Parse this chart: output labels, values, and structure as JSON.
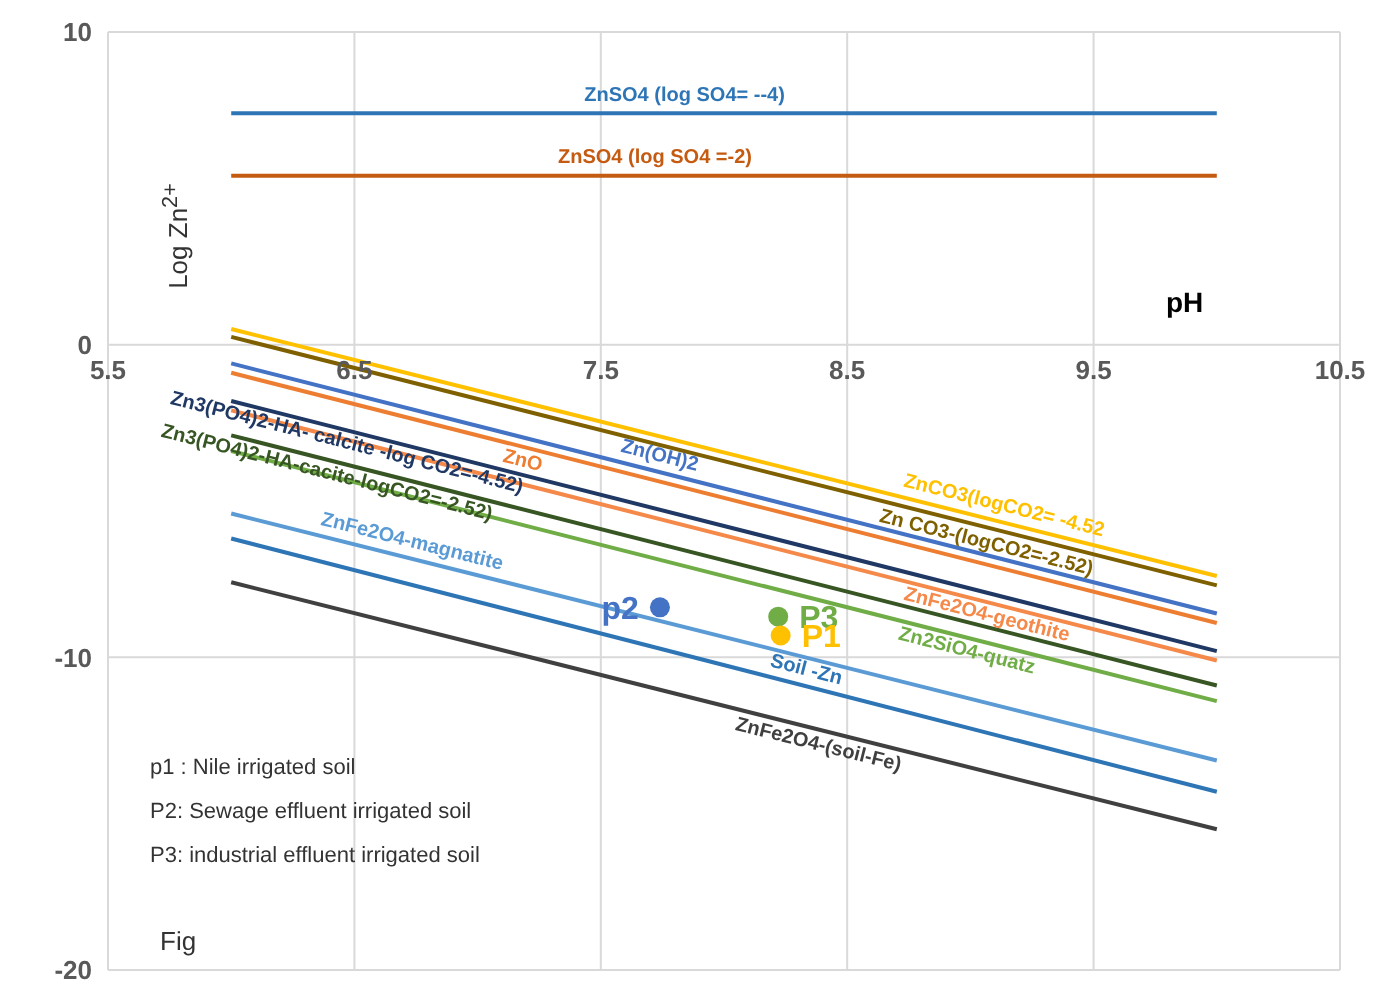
{
  "chart_data": {
    "type": "line",
    "xlabel": "pH",
    "ylabel": "Log Zn$^{2+}$",
    "xlim": [
      5.5,
      10.5
    ],
    "xticks": [
      {
        "value": 5.5,
        "label": "5.5"
      },
      {
        "value": 6.5,
        "label": "6.5"
      },
      {
        "value": 7.5,
        "label": "7.5"
      },
      {
        "value": 8.5,
        "label": "8.5"
      },
      {
        "value": 9.5,
        "label": "9.5"
      },
      {
        "value": 10.5,
        "label": "10.5"
      }
    ],
    "ylim": [
      -20,
      10
    ],
    "yticks": [
      -20,
      -10,
      0,
      10
    ],
    "grid": true,
    "legend": false,
    "marker": "none",
    "line_style": "solid",
    "annotations": [
      "p1 : Nile irrigated soil",
      "P2: Sewage effluent irrigated soil",
      "P3: industrial effluent irrigated soil",
      "Fig"
    ],
    "series": [
      {
        "name": "ZnSO4 (log SO4= --4)",
        "color": "#2e75b6",
        "x": [
          6,
          10
        ],
        "values": [
          7.4,
          7.4
        ]
      },
      {
        "name": "ZnSO4 (log SO4 =-2)",
        "color": "#c55a11",
        "x": [
          6,
          10
        ],
        "values": [
          5.4,
          5.4
        ]
      },
      {
        "name": "ZnCO3(logCO2= -4.52",
        "color": "#ffc000",
        "x": [
          6,
          10
        ],
        "values": [
          0.5,
          -7.4
        ]
      },
      {
        "name": "Zn CO3-(logCO2=-2.52)",
        "color": "#7f6000",
        "x": [
          6,
          10
        ],
        "values": [
          0.25,
          -7.7
        ]
      },
      {
        "name": "Zn(OH)2",
        "color": "#4472c4",
        "x": [
          6,
          10
        ],
        "values": [
          -0.6,
          -8.6
        ]
      },
      {
        "name": "ZnO",
        "color": "#ed7d31",
        "x": [
          6,
          10
        ],
        "values": [
          -0.9,
          -8.9
        ]
      },
      {
        "name": "Zn3(PO4)2-HA- calcite -log CO2=-4.52)",
        "color": "#203864",
        "x": [
          6,
          10
        ],
        "values": [
          -1.8,
          -9.8
        ]
      },
      {
        "name": "ZnFe2O4-geothite",
        "color": "#f4894a",
        "x": [
          6,
          10
        ],
        "values": [
          -2.1,
          -10.1
        ]
      },
      {
        "name": "Zn3(PO4)2-HA-cacite-logCO2=-2.52)",
        "color": "#375623",
        "x": [
          6,
          10
        ],
        "values": [
          -2.9,
          -10.9
        ]
      },
      {
        "name": "Zn2SiO4-quatz",
        "color": "#70ad47",
        "x": [
          6,
          10
        ],
        "values": [
          -3.4,
          -11.4
        ]
      },
      {
        "name": "ZnFe2O4-magnatite",
        "color": "#5b9bd5",
        "x": [
          6,
          10
        ],
        "values": [
          -5.4,
          -13.3
        ]
      },
      {
        "name": "Soil -Zn",
        "color": "#2e75b6",
        "x": [
          6,
          10
        ],
        "values": [
          -6.2,
          -14.3
        ]
      },
      {
        "name": "ZnFe2O4-(soil-Fe)",
        "color": "#404040",
        "x": [
          6,
          10
        ],
        "values": [
          -7.6,
          -15.5
        ]
      },
      {
        "name": "p2",
        "type": "scatter",
        "marker": "circle",
        "color": "#4472c4",
        "x": [
          7.74
        ],
        "values": [
          -8.4
        ]
      },
      {
        "name": "P3",
        "type": "scatter",
        "marker": "circle",
        "color": "#70ad47",
        "x": [
          8.22
        ],
        "values": [
          -8.7
        ]
      },
      {
        "name": "P1",
        "type": "scatter",
        "marker": "circle",
        "color": "#ffc000",
        "x": [
          8.23
        ],
        "values": [
          -9.3
        ]
      }
    ]
  }
}
